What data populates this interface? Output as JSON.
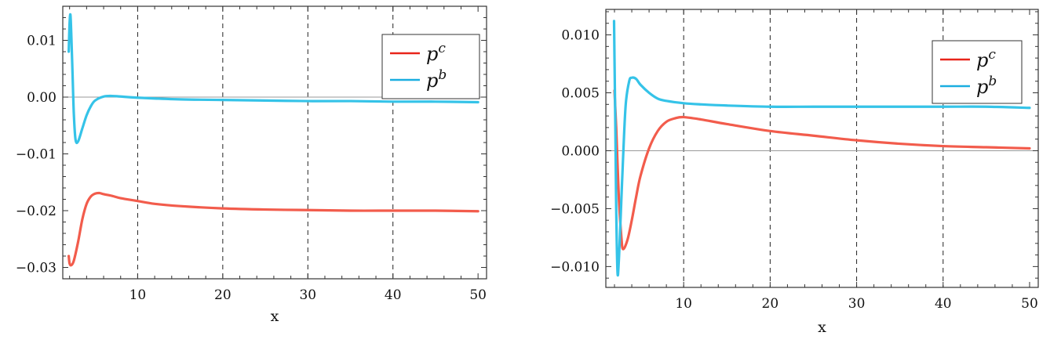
{
  "colors": {
    "pc": "#f25c4c",
    "pb": "#35c3e8",
    "legend_pc": "#e8241a",
    "legend_pb": "#1aaee0"
  },
  "chart_data": [
    {
      "type": "line",
      "xlabel": "x",
      "ylabel": "",
      "xlim": [
        1.2,
        51
      ],
      "ylim": [
        -0.032,
        0.016
      ],
      "xticks": [
        10,
        20,
        30,
        40,
        50
      ],
      "xtick_labels": [
        "10",
        "20",
        "30",
        "40",
        "50"
      ],
      "yticks": [
        -0.03,
        -0.02,
        -0.01,
        0.0,
        0.01
      ],
      "ytick_labels": [
        "-0.03",
        "-0.02",
        "-0.01",
        "0.00",
        "0.01"
      ],
      "vertical_gridlines": [
        10,
        20,
        30,
        40
      ],
      "zero_line": true,
      "legend_position": "top-right",
      "series": [
        {
          "name": "p",
          "sup": "c",
          "color_key": "pc",
          "x": [
            1.9,
            2.0,
            2.2,
            2.5,
            3.0,
            3.5,
            4.0,
            4.5,
            5.0,
            5.5,
            6.0,
            7.0,
            8.0,
            10.0,
            12.0,
            15.0,
            20.0,
            25.0,
            30.0,
            35.0,
            40.0,
            45.0,
            50.0
          ],
          "y": [
            -0.028,
            -0.0293,
            -0.0296,
            -0.0288,
            -0.0255,
            -0.0215,
            -0.0188,
            -0.0175,
            -0.017,
            -0.0169,
            -0.0171,
            -0.0174,
            -0.0178,
            -0.0183,
            -0.0188,
            -0.0192,
            -0.0196,
            -0.0198,
            -0.0199,
            -0.02,
            -0.02,
            -0.02,
            -0.0201
          ]
        },
        {
          "name": "p",
          "sup": "b",
          "color_key": "pb",
          "x": [
            1.9,
            2.0,
            2.1,
            2.2,
            2.35,
            2.5,
            2.7,
            3.0,
            3.5,
            4.0,
            4.5,
            5.0,
            6.0,
            7.0,
            8.0,
            10.0,
            15.0,
            20.0,
            25.0,
            30.0,
            35.0,
            40.0,
            45.0,
            50.0
          ],
          "y": [
            0.008,
            0.013,
            0.0145,
            0.011,
            0.004,
            -0.003,
            -0.0075,
            -0.0078,
            -0.0055,
            -0.0032,
            -0.0016,
            -0.0006,
            0.0001,
            0.0002,
            0.0001,
            -0.0001,
            -0.0004,
            -0.0005,
            -0.0006,
            -0.0007,
            -0.0007,
            -0.0008,
            -0.0008,
            -0.0009
          ]
        }
      ]
    },
    {
      "type": "line",
      "xlabel": "x",
      "ylabel": "",
      "xlim": [
        1.0,
        51
      ],
      "ylim": [
        -0.0118,
        0.0122
      ],
      "xticks": [
        10,
        20,
        30,
        40,
        50
      ],
      "xtick_labels": [
        "10",
        "20",
        "30",
        "40",
        "50"
      ],
      "yticks": [
        -0.01,
        -0.005,
        0.0,
        0.005,
        0.01
      ],
      "ytick_labels": [
        "-0.010",
        "-0.005",
        "0.000",
        "0.005",
        "0.010"
      ],
      "vertical_gridlines": [
        10,
        20,
        30,
        40
      ],
      "zero_line": true,
      "legend_position": "top-right",
      "series": [
        {
          "name": "p",
          "sup": "c",
          "color_key": "pc",
          "x": [
            2.0,
            2.2,
            2.5,
            2.8,
            3.0,
            3.5,
            4.0,
            4.5,
            5.0,
            6.0,
            7.0,
            8.0,
            9.0,
            10.0,
            12.0,
            15.0,
            20.0,
            25.0,
            30.0,
            35.0,
            40.0,
            45.0,
            50.0
          ],
          "y": [
            0.0052,
            0.002,
            -0.004,
            -0.0075,
            -0.0085,
            -0.0077,
            -0.006,
            -0.004,
            -0.0022,
            0.0002,
            0.0017,
            0.0025,
            0.0028,
            0.0029,
            0.0027,
            0.0023,
            0.0017,
            0.0013,
            0.0009,
            0.0006,
            0.0004,
            0.0003,
            0.0002
          ]
        },
        {
          "name": "p",
          "sup": "b",
          "color_key": "pb",
          "x": [
            1.95,
            2.0,
            2.1,
            2.2,
            2.35,
            2.5,
            2.7,
            3.0,
            3.3,
            3.7,
            4.0,
            4.5,
            5.0,
            6.0,
            7.0,
            8.0,
            10.0,
            12.0,
            15.0,
            20.0,
            25.0,
            30.0,
            35.0,
            40.0,
            45.0,
            50.0
          ],
          "y": [
            0.0112,
            0.008,
            0.002,
            -0.005,
            -0.0105,
            -0.0095,
            -0.006,
            -0.0005,
            0.004,
            0.006,
            0.0063,
            0.0062,
            0.0057,
            0.005,
            0.0045,
            0.0043,
            0.0041,
            0.004,
            0.0039,
            0.0038,
            0.0038,
            0.0038,
            0.0038,
            0.0038,
            0.0038,
            0.0037
          ]
        }
      ]
    }
  ]
}
